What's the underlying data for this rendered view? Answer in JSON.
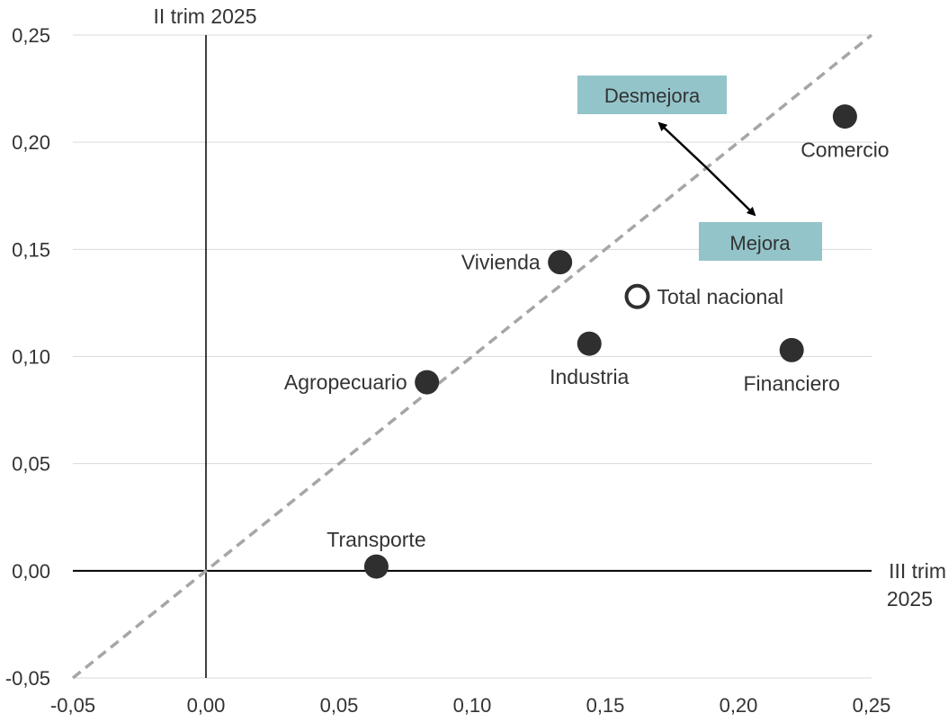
{
  "chart_data": {
    "type": "scatter",
    "x_axis_title": "III trim 2025",
    "y_axis_title": "II trim 2025",
    "xlim": [
      -0.05,
      0.25
    ],
    "ylim": [
      -0.05,
      0.25
    ],
    "x_ticks": [
      -0.05,
      0.0,
      0.05,
      0.1,
      0.15,
      0.2,
      0.25
    ],
    "x_tick_labels": [
      "-0,05",
      "0,00",
      "0,05",
      "0,10",
      "0,15",
      "0,20",
      "0,25"
    ],
    "y_ticks": [
      -0.05,
      0.0,
      0.05,
      0.1,
      0.15,
      0.2,
      0.25
    ],
    "y_tick_labels": [
      "-0,05",
      "0,00",
      "0,05",
      "0,10",
      "0,15",
      "0,20",
      "0,25"
    ],
    "grid": "horizontal",
    "reference_line": "y = x (dashed)",
    "points": [
      {
        "label": "Comercio",
        "x": 0.24,
        "y": 0.212,
        "filled": true,
        "label_pos": "below"
      },
      {
        "label": "Vivienda",
        "x": 0.133,
        "y": 0.144,
        "filled": true,
        "label_pos": "left"
      },
      {
        "label": "Total nacional",
        "x": 0.162,
        "y": 0.128,
        "filled": false,
        "label_pos": "right"
      },
      {
        "label": "Industria",
        "x": 0.144,
        "y": 0.106,
        "filled": true,
        "label_pos": "below"
      },
      {
        "label": "Financiero",
        "x": 0.22,
        "y": 0.103,
        "filled": true,
        "label_pos": "below"
      },
      {
        "label": "Agropecuario",
        "x": 0.083,
        "y": 0.088,
        "filled": true,
        "label_pos": "left"
      },
      {
        "label": "Transporte",
        "x": 0.064,
        "y": 0.002,
        "filled": true,
        "label_pos": "above"
      }
    ],
    "annotations": {
      "worse": "Desmejora",
      "better": "Mejora",
      "box_color": "#93c4ca"
    },
    "colors": {
      "point": "#2f2f2f",
      "reference_line": "#a6a6a6",
      "grid": "#d9d9d9",
      "axis": "#000000",
      "text": "#333333"
    }
  }
}
